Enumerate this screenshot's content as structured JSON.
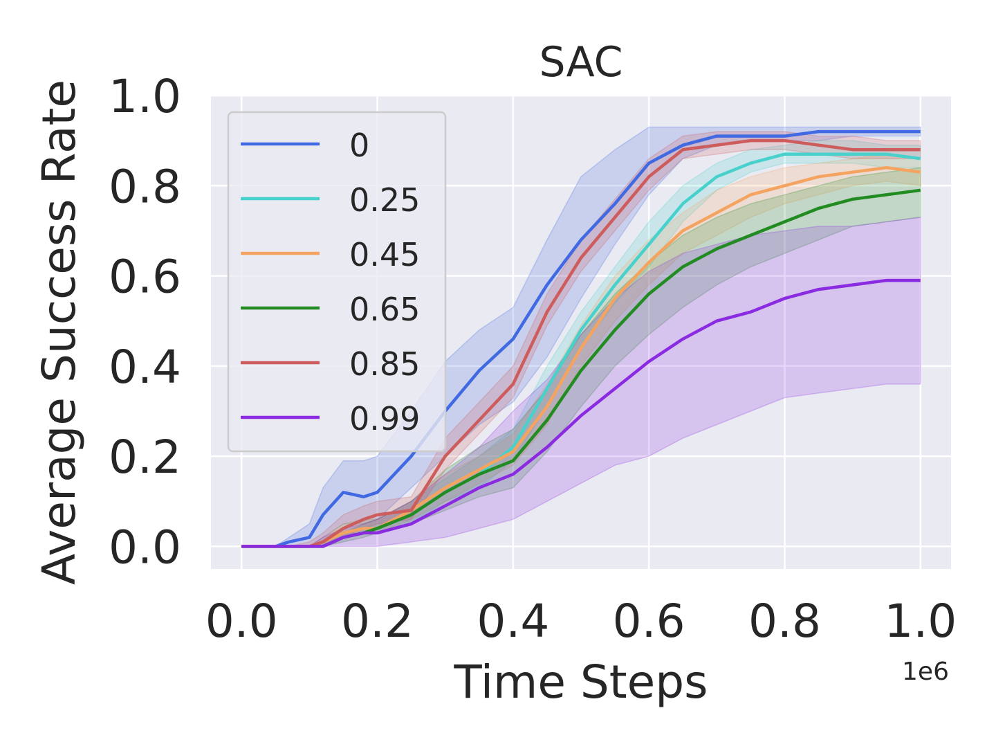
{
  "chart_data": {
    "type": "line",
    "title": "SAC",
    "xlabel": "Time Steps",
    "ylabel": "Average Success Rate",
    "x_offset_label": "1e6",
    "xlim": [
      -0.045,
      1.045
    ],
    "ylim": [
      -0.05,
      1.0
    ],
    "xticks": [
      0.0,
      0.2,
      0.4,
      0.6,
      0.8,
      1.0
    ],
    "xtick_labels": [
      "0.0",
      "0.2",
      "0.4",
      "0.6",
      "0.8",
      "1.0"
    ],
    "yticks": [
      0.0,
      0.2,
      0.4,
      0.6,
      0.8,
      1.0
    ],
    "ytick_labels": [
      "0.0",
      "0.2",
      "0.4",
      "0.6",
      "0.8",
      "1.0"
    ],
    "grid": true,
    "legend_position": "top-left",
    "x": [
      0.0,
      0.05,
      0.07,
      0.1,
      0.12,
      0.15,
      0.18,
      0.2,
      0.25,
      0.3,
      0.35,
      0.4,
      0.45,
      0.5,
      0.55,
      0.6,
      0.65,
      0.7,
      0.75,
      0.8,
      0.85,
      0.9,
      0.95,
      1.0
    ],
    "series": [
      {
        "name": "0",
        "color": "#4169e1",
        "values": [
          0.0,
          0.0,
          0.01,
          0.02,
          0.07,
          0.12,
          0.11,
          0.12,
          0.2,
          0.3,
          0.39,
          0.46,
          0.58,
          0.68,
          0.76,
          0.85,
          0.89,
          0.91,
          0.91,
          0.91,
          0.92,
          0.92,
          0.92,
          0.92
        ],
        "lower": [
          0.0,
          0.0,
          0.0,
          0.0,
          0.02,
          0.05,
          0.05,
          0.06,
          0.13,
          0.2,
          0.27,
          0.32,
          0.42,
          0.55,
          0.67,
          0.78,
          0.86,
          0.89,
          0.9,
          0.9,
          0.9,
          0.91,
          0.91,
          0.91
        ],
        "upper": [
          0.0,
          0.0,
          0.02,
          0.05,
          0.13,
          0.19,
          0.19,
          0.2,
          0.3,
          0.41,
          0.48,
          0.53,
          0.68,
          0.82,
          0.88,
          0.93,
          0.93,
          0.93,
          0.93,
          0.93,
          0.93,
          0.93,
          0.93,
          0.93
        ]
      },
      {
        "name": "0.25",
        "color": "#48d1cc",
        "values": [
          0.0,
          0.0,
          0.0,
          0.0,
          0.01,
          0.03,
          0.04,
          0.04,
          0.07,
          0.12,
          0.16,
          0.22,
          0.35,
          0.48,
          0.58,
          0.67,
          0.76,
          0.82,
          0.85,
          0.87,
          0.87,
          0.87,
          0.87,
          0.86
        ],
        "lower": [
          0.0,
          0.0,
          0.0,
          0.0,
          0.0,
          0.02,
          0.03,
          0.03,
          0.05,
          0.1,
          0.13,
          0.19,
          0.31,
          0.44,
          0.54,
          0.62,
          0.72,
          0.79,
          0.83,
          0.85,
          0.85,
          0.85,
          0.84,
          0.84
        ],
        "upper": [
          0.0,
          0.0,
          0.0,
          0.0,
          0.02,
          0.05,
          0.06,
          0.06,
          0.1,
          0.15,
          0.2,
          0.26,
          0.4,
          0.52,
          0.62,
          0.72,
          0.8,
          0.85,
          0.88,
          0.89,
          0.9,
          0.9,
          0.89,
          0.89
        ]
      },
      {
        "name": "0.45",
        "color": "#f4a460",
        "values": [
          0.0,
          0.0,
          0.0,
          0.0,
          0.01,
          0.03,
          0.04,
          0.04,
          0.08,
          0.13,
          0.17,
          0.21,
          0.31,
          0.44,
          0.55,
          0.63,
          0.7,
          0.74,
          0.78,
          0.8,
          0.82,
          0.83,
          0.84,
          0.83
        ],
        "lower": [
          0.0,
          0.0,
          0.0,
          0.0,
          0.0,
          0.02,
          0.03,
          0.03,
          0.06,
          0.1,
          0.14,
          0.18,
          0.27,
          0.4,
          0.5,
          0.58,
          0.65,
          0.69,
          0.73,
          0.76,
          0.78,
          0.8,
          0.81,
          0.8
        ],
        "upper": [
          0.0,
          0.0,
          0.0,
          0.0,
          0.02,
          0.05,
          0.06,
          0.06,
          0.1,
          0.16,
          0.2,
          0.25,
          0.36,
          0.49,
          0.6,
          0.68,
          0.74,
          0.79,
          0.82,
          0.84,
          0.85,
          0.86,
          0.87,
          0.86
        ]
      },
      {
        "name": "0.65",
        "color": "#228b22",
        "values": [
          0.0,
          0.0,
          0.0,
          0.0,
          0.0,
          0.02,
          0.03,
          0.04,
          0.07,
          0.12,
          0.16,
          0.19,
          0.28,
          0.39,
          0.48,
          0.56,
          0.62,
          0.66,
          0.69,
          0.72,
          0.75,
          0.77,
          0.78,
          0.79
        ],
        "lower": [
          0.0,
          0.0,
          0.0,
          0.0,
          0.0,
          0.01,
          0.02,
          0.03,
          0.05,
          0.08,
          0.11,
          0.13,
          0.21,
          0.31,
          0.4,
          0.47,
          0.53,
          0.58,
          0.62,
          0.65,
          0.68,
          0.71,
          0.72,
          0.73
        ],
        "upper": [
          0.0,
          0.0,
          0.0,
          0.0,
          0.01,
          0.03,
          0.05,
          0.06,
          0.1,
          0.17,
          0.22,
          0.26,
          0.35,
          0.47,
          0.56,
          0.63,
          0.69,
          0.73,
          0.76,
          0.78,
          0.8,
          0.82,
          0.83,
          0.84
        ]
      },
      {
        "name": "0.85",
        "color": "#cd5c5c",
        "values": [
          0.0,
          0.0,
          0.0,
          0.0,
          0.01,
          0.04,
          0.06,
          0.07,
          0.08,
          0.2,
          0.28,
          0.36,
          0.52,
          0.64,
          0.73,
          0.82,
          0.88,
          0.89,
          0.9,
          0.9,
          0.89,
          0.88,
          0.88,
          0.88
        ],
        "lower": [
          0.0,
          0.0,
          0.0,
          0.0,
          0.0,
          0.02,
          0.04,
          0.05,
          0.06,
          0.17,
          0.25,
          0.33,
          0.49,
          0.61,
          0.7,
          0.79,
          0.86,
          0.87,
          0.88,
          0.88,
          0.87,
          0.86,
          0.86,
          0.86
        ],
        "upper": [
          0.0,
          0.0,
          0.0,
          0.01,
          0.03,
          0.07,
          0.09,
          0.1,
          0.11,
          0.24,
          0.32,
          0.4,
          0.56,
          0.68,
          0.77,
          0.86,
          0.91,
          0.92,
          0.92,
          0.92,
          0.91,
          0.91,
          0.9,
          0.9
        ]
      },
      {
        "name": "0.99",
        "color": "#8a2be2",
        "values": [
          0.0,
          0.0,
          0.0,
          0.0,
          0.0,
          0.02,
          0.03,
          0.03,
          0.05,
          0.09,
          0.13,
          0.16,
          0.22,
          0.29,
          0.35,
          0.41,
          0.46,
          0.5,
          0.52,
          0.55,
          0.57,
          0.58,
          0.59,
          0.59
        ],
        "lower": [
          0.0,
          0.0,
          0.0,
          0.0,
          0.0,
          0.0,
          0.0,
          0.0,
          0.01,
          0.02,
          0.04,
          0.06,
          0.1,
          0.14,
          0.18,
          0.2,
          0.24,
          0.27,
          0.3,
          0.33,
          0.34,
          0.35,
          0.36,
          0.36
        ],
        "upper": [
          0.0,
          0.0,
          0.0,
          0.0,
          0.02,
          0.04,
          0.05,
          0.06,
          0.1,
          0.16,
          0.22,
          0.3,
          0.37,
          0.47,
          0.55,
          0.61,
          0.65,
          0.67,
          0.69,
          0.7,
          0.71,
          0.71,
          0.72,
          0.73
        ]
      }
    ]
  }
}
